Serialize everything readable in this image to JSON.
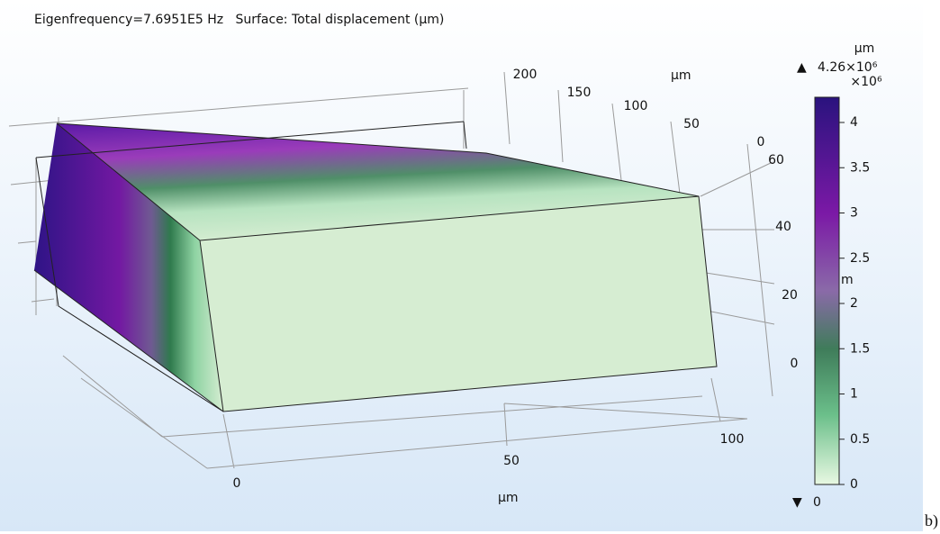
{
  "header": {
    "title": "Eigenfrequency=7.6951E5 Hz   Surface: Total displacement (µm)"
  },
  "plot": {
    "y_axis": {
      "label": "µm",
      "ticks": [
        "200",
        "150",
        "100",
        "50",
        "0"
      ]
    },
    "z_axis": {
      "ticks": [
        "60",
        "40",
        "20",
        "0"
      ]
    },
    "x_axis": {
      "label": "µm",
      "ticks": [
        "0",
        "50",
        "100"
      ]
    }
  },
  "colorbar": {
    "unit": "µm",
    "max_label": "4.26×10⁶",
    "multiplier": "×10⁶",
    "ticks": [
      "4",
      "3.5",
      "3",
      "2.5",
      "2",
      "1.5",
      "1",
      "0.5",
      "0"
    ],
    "min_label": "0",
    "hidden_label": "m"
  },
  "caption": "b)"
}
